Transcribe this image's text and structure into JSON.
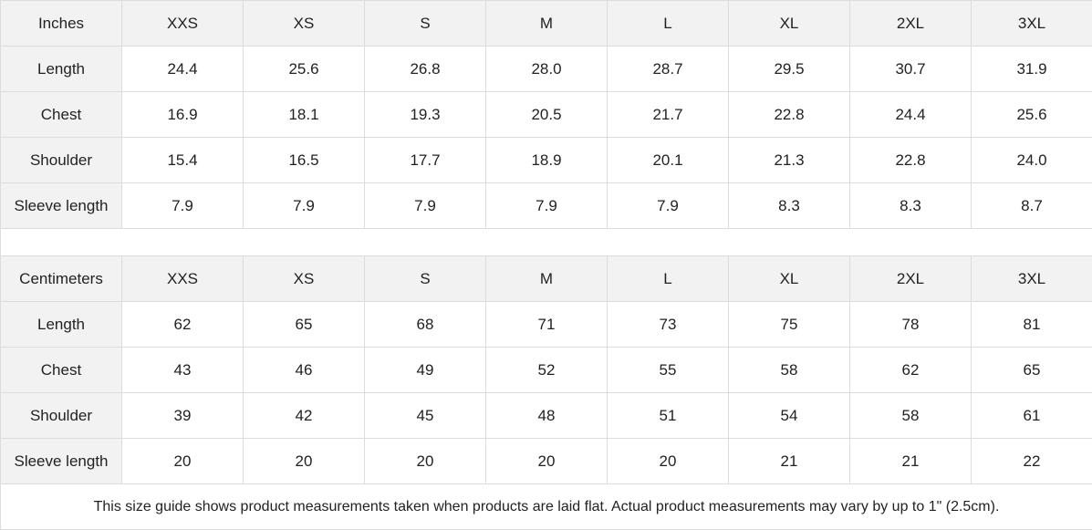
{
  "inches": {
    "header": [
      "Inches",
      "XXS",
      "XS",
      "S",
      "M",
      "L",
      "XL",
      "2XL",
      "3XL"
    ],
    "rows": [
      [
        "Length",
        "24.4",
        "25.6",
        "26.8",
        "28.0",
        "28.7",
        "29.5",
        "30.7",
        "31.9"
      ],
      [
        "Chest",
        "16.9",
        "18.1",
        "19.3",
        "20.5",
        "21.7",
        "22.8",
        "24.4",
        "25.6"
      ],
      [
        "Shoulder",
        "15.4",
        "16.5",
        "17.7",
        "18.9",
        "20.1",
        "21.3",
        "22.8",
        "24.0"
      ],
      [
        "Sleeve length",
        "7.9",
        "7.9",
        "7.9",
        "7.9",
        "7.9",
        "8.3",
        "8.3",
        "8.7"
      ]
    ]
  },
  "centimeters": {
    "header": [
      "Centimeters",
      "XXS",
      "XS",
      "S",
      "M",
      "L",
      "XL",
      "2XL",
      "3XL"
    ],
    "rows": [
      [
        "Length",
        "62",
        "65",
        "68",
        "71",
        "73",
        "75",
        "78",
        "81"
      ],
      [
        "Chest",
        "43",
        "46",
        "49",
        "52",
        "55",
        "58",
        "62",
        "65"
      ],
      [
        "Shoulder",
        "39",
        "42",
        "45",
        "48",
        "51",
        "54",
        "58",
        "61"
      ],
      [
        "Sleeve length",
        "20",
        "20",
        "20",
        "20",
        "20",
        "21",
        "21",
        "22"
      ]
    ]
  },
  "footer_note": "This size guide shows product measurements taken when products are laid flat.  Actual product measurements may vary by up to 1\" (2.5cm)."
}
